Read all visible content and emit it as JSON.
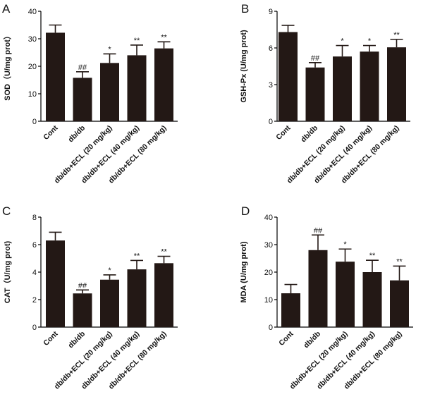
{
  "chart_data": [
    {
      "panel": "A",
      "type": "bar",
      "categories": [
        "Cont",
        "db/db",
        "db/db+ECL (20 mg/kg)",
        "db/db+ECL (40 mg/kg)",
        "db/db+ECL (80 mg/kg)"
      ],
      "values": [
        32.2,
        15.8,
        21.2,
        24.0,
        26.5
      ],
      "errors": [
        2.8,
        2.2,
        3.3,
        3.7,
        2.4
      ],
      "annotations": [
        "",
        "##",
        "*",
        "**",
        "**"
      ],
      "ylabel": "SOD（U/mg prot）",
      "ylim": [
        0,
        40
      ],
      "yticks": [
        0,
        10,
        20,
        30,
        40
      ],
      "color": "#231815"
    },
    {
      "panel": "B",
      "type": "bar",
      "categories": [
        "Cont",
        "db/db",
        "db/db+ECL (20 mg/kg)",
        "db/db+ECL (40 mg/kg)",
        "db/db+ECL (80 mg/kg)"
      ],
      "values": [
        7.3,
        4.4,
        5.3,
        5.7,
        6.05
      ],
      "errors": [
        0.55,
        0.4,
        0.9,
        0.5,
        0.65
      ],
      "annotations": [
        "",
        "##",
        "*",
        "*",
        "**"
      ],
      "ylabel": "GSH-Px (U/mg prot)",
      "ylim": [
        0,
        9
      ],
      "yticks": [
        0,
        3,
        6,
        9
      ],
      "color": "#231815"
    },
    {
      "panel": "C",
      "type": "bar",
      "categories": [
        "Cont",
        "db/db",
        "db/db+ECL (20 mg/kg)",
        "db/db+ECL (40 mg/kg)",
        "db/db+ECL (80 mg/kg)"
      ],
      "values": [
        6.3,
        2.45,
        3.45,
        4.2,
        4.65
      ],
      "errors": [
        0.6,
        0.25,
        0.35,
        0.65,
        0.5
      ],
      "annotations": [
        "",
        "##",
        "*",
        "**",
        "**"
      ],
      "ylabel": "CAT（U/mg prot)",
      "ylim": [
        0,
        8
      ],
      "yticks": [
        0,
        2,
        4,
        6,
        8
      ],
      "color": "#231815"
    },
    {
      "panel": "D",
      "type": "bar",
      "categories": [
        "Cont",
        "db/db",
        "db/db+ECL (20 mg/kg)",
        "db/db+ECL (40 mg/kg)",
        "db/db+ECL (80 mg/kg)"
      ],
      "values": [
        12.3,
        28.0,
        23.8,
        20.0,
        17.0
      ],
      "errors": [
        3.2,
        5.5,
        4.6,
        4.3,
        5.2
      ],
      "annotations": [
        "",
        "##",
        "*",
        "**",
        "**"
      ],
      "ylabel": "MDA (U/mg prot)",
      "ylim": [
        0,
        40
      ],
      "yticks": [
        0,
        10,
        20,
        30,
        40
      ],
      "color": "#231815"
    }
  ]
}
